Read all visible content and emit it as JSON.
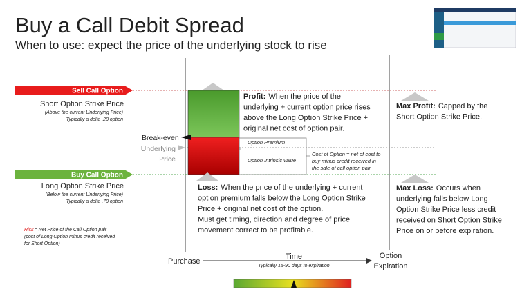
{
  "header": {
    "title": "Buy a Call Debit Spread",
    "subtitle": "When to use:  expect the price of the underlying stock to rise"
  },
  "short_option": {
    "tag": "Sell Call Option",
    "title": "Short Option Strike Price",
    "notes": [
      "(Above the current Underlying Price)",
      "Typically a delta .20 option"
    ]
  },
  "break_even": "Break-even",
  "underlying": [
    "Underlying",
    "Price"
  ],
  "long_option": {
    "tag": "Buy Call Option",
    "title": "Long Option Strike Price",
    "notes": [
      "(Below the current Underlying Price)",
      "Typically a delta .70 option"
    ]
  },
  "risk": {
    "label": "Risk",
    "lines": [
      "= Net Price of the Call Option pair",
      "(cost of Long Option minus credit received",
      "for Short Option)"
    ]
  },
  "profit": {
    "label": "Profit:",
    "lines": [
      "When the price of the",
      "underlying + current option price rises",
      "above the Long Option Strike Price +",
      "original net cost of option pair."
    ]
  },
  "premium": {
    "labels": [
      "Option Premium",
      "Option Intrinsic value"
    ],
    "cost": [
      "Cost of Option = net of cost to",
      "buy minus credit received in",
      "the sale of call option pair"
    ]
  },
  "loss": {
    "label": "Loss:",
    "lines": [
      "When the price of the underlying + current",
      "option premium falls below the Long Option Strike",
      "Price + original net cost of the option.",
      "Must get timing, direction and degree of price",
      "movement correct to be profitable."
    ]
  },
  "max_profit": {
    "label": "Max Profit:",
    "lines": [
      "Capped by the",
      "Short Option Strike Price."
    ]
  },
  "max_loss": {
    "label": "Max Loss:",
    "lines": [
      "Occurs when",
      "underlying falls below Long",
      "Option Strike Price less credit",
      "received on Short Option Strike",
      "Price on or before expiration."
    ]
  },
  "timeline": {
    "start": "Purchase",
    "label": "Time",
    "note": "Typically 15-90 days to expiration",
    "end": [
      "Option",
      "Expiration"
    ]
  }
}
